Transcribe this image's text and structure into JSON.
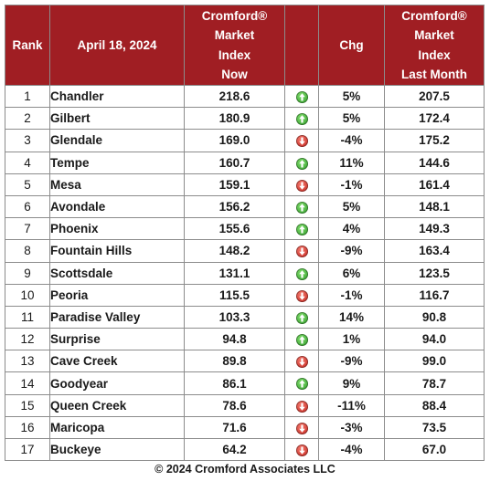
{
  "header": {
    "rank": "Rank",
    "date": "April 18, 2024",
    "now_lines": [
      "Cromford®",
      "Market",
      "Index",
      "Now"
    ],
    "chg": "Chg",
    "last_lines": [
      "Cromford®",
      "Market",
      "Index",
      "Last Month"
    ]
  },
  "rows": [
    {
      "rank": "1",
      "city": "Chandler",
      "now": "218.6",
      "dir": "up",
      "chg": "5%",
      "last": "207.5"
    },
    {
      "rank": "2",
      "city": "Gilbert",
      "now": "180.9",
      "dir": "up",
      "chg": "5%",
      "last": "172.4"
    },
    {
      "rank": "3",
      "city": "Glendale",
      "now": "169.0",
      "dir": "down",
      "chg": "-4%",
      "last": "175.2"
    },
    {
      "rank": "4",
      "city": "Tempe",
      "now": "160.7",
      "dir": "up",
      "chg": "11%",
      "last": "144.6"
    },
    {
      "rank": "5",
      "city": "Mesa",
      "now": "159.1",
      "dir": "down",
      "chg": "-1%",
      "last": "161.4"
    },
    {
      "rank": "6",
      "city": "Avondale",
      "now": "156.2",
      "dir": "up",
      "chg": "5%",
      "last": "148.1"
    },
    {
      "rank": "7",
      "city": "Phoenix",
      "now": "155.6",
      "dir": "up",
      "chg": "4%",
      "last": "149.3"
    },
    {
      "rank": "8",
      "city": "Fountain Hills",
      "now": "148.2",
      "dir": "down",
      "chg": "-9%",
      "last": "163.4"
    },
    {
      "rank": "9",
      "city": "Scottsdale",
      "now": "131.1",
      "dir": "up",
      "chg": "6%",
      "last": "123.5"
    },
    {
      "rank": "10",
      "city": "Peoria",
      "now": "115.5",
      "dir": "down",
      "chg": "-1%",
      "last": "116.7"
    },
    {
      "rank": "11",
      "city": "Paradise Valley",
      "now": "103.3",
      "dir": "up",
      "chg": "14%",
      "last": "90.8"
    },
    {
      "rank": "12",
      "city": "Surprise",
      "now": "94.8",
      "dir": "up",
      "chg": "1%",
      "last": "94.0"
    },
    {
      "rank": "13",
      "city": "Cave Creek",
      "now": "89.8",
      "dir": "down",
      "chg": "-9%",
      "last": "99.0"
    },
    {
      "rank": "14",
      "city": "Goodyear",
      "now": "86.1",
      "dir": "up",
      "chg": "9%",
      "last": "78.7"
    },
    {
      "rank": "15",
      "city": "Queen Creek",
      "now": "78.6",
      "dir": "down",
      "chg": "-11%",
      "last": "88.4"
    },
    {
      "rank": "16",
      "city": "Maricopa",
      "now": "71.6",
      "dir": "down",
      "chg": "-3%",
      "last": "73.5"
    },
    {
      "rank": "17",
      "city": "Buckeye",
      "now": "64.2",
      "dir": "down",
      "chg": "-4%",
      "last": "67.0"
    }
  ],
  "colors": {
    "header_bg": "#a01e23",
    "up": "#2f9d2a",
    "down": "#c4221b"
  },
  "icons": {
    "up": "up-arrow-icon",
    "down": "down-arrow-icon"
  },
  "footer": "© 2024 Cromford Associates LLC"
}
